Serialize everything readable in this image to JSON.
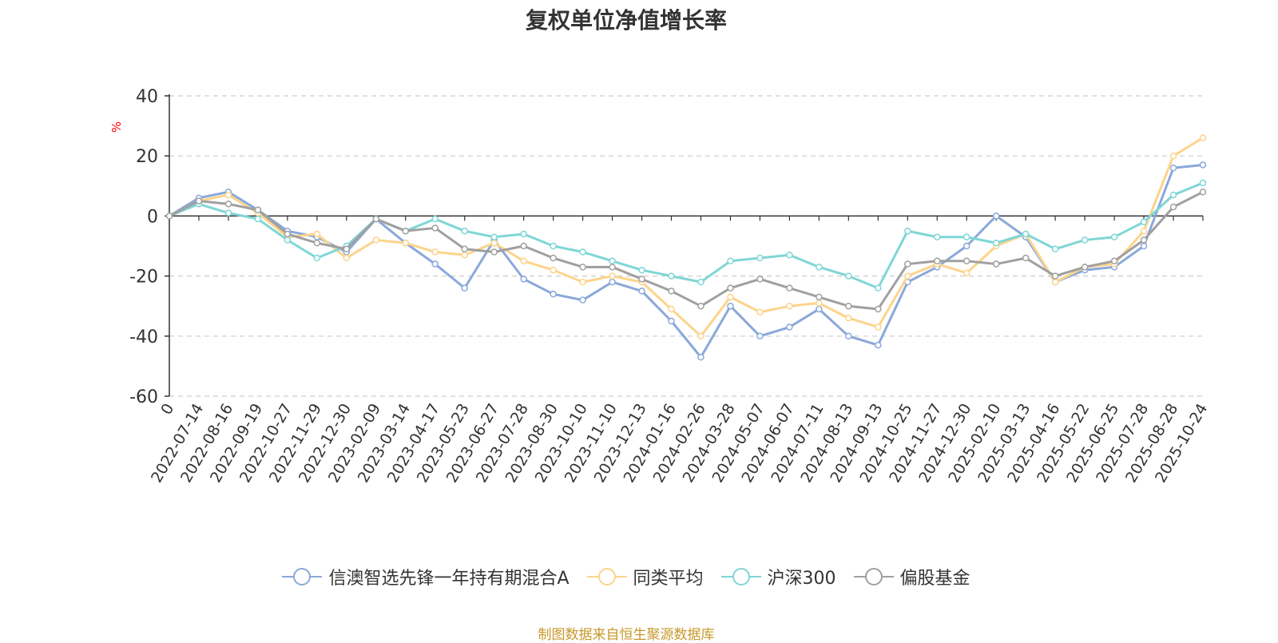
{
  "title": "复权单位净值增长率",
  "unit": "%",
  "source": "制图数据来自恒生聚源数据库",
  "chart_data": {
    "type": "line",
    "ylim": [
      -60,
      40
    ],
    "yticks": [
      -60,
      -40,
      -20,
      0,
      20,
      40
    ],
    "grid": true,
    "legend_position": "bottom",
    "x_labels": [
      "0",
      "2022-07-14",
      "2022-08-16",
      "2022-09-19",
      "2022-10-27",
      "2022-11-29",
      "2022-12-30",
      "2023-02-09",
      "2023-03-14",
      "2023-04-17",
      "2023-05-23",
      "2023-06-27",
      "2023-07-28",
      "2023-08-30",
      "2023-10-10",
      "2023-11-10",
      "2023-12-13",
      "2024-01-16",
      "2024-02-26",
      "2024-03-28",
      "2024-05-07",
      "2024-06-07",
      "2024-07-11",
      "2024-08-13",
      "2024-09-13",
      "2024-10-25",
      "2024-11-27",
      "2024-12-30",
      "2025-02-10",
      "2025-03-13",
      "2025-04-16",
      "2025-05-22",
      "2025-06-25",
      "2025-07-28",
      "2025-08-28",
      "2025-10-24"
    ],
    "series": [
      {
        "name": "信澳智选先锋一年持有期混合A",
        "color": "#8aa8da",
        "values": [
          0,
          6,
          8,
          2,
          -5,
          -7,
          -12,
          -1,
          -9,
          -16,
          -24,
          -8,
          -21,
          -26,
          -28,
          -22,
          -25,
          -35,
          -47,
          -30,
          -40,
          -37,
          -31,
          -40,
          -43,
          -22,
          -17,
          -10,
          0,
          -7,
          -22,
          -18,
          -17,
          -10,
          16,
          17
        ]
      },
      {
        "name": "同类平均",
        "color": "#fcd48c",
        "values": [
          0,
          5,
          7,
          1,
          -7,
          -6,
          -14,
          -8,
          -9,
          -12,
          -13,
          -9,
          -15,
          -18,
          -22,
          -20,
          -22,
          -31,
          -40,
          -27,
          -32,
          -30,
          -29,
          -34,
          -37,
          -20,
          -16,
          -19,
          -10,
          -6,
          -22,
          -17,
          -16,
          -5,
          20,
          26
        ]
      },
      {
        "name": "沪深300",
        "color": "#7fd6d6",
        "values": [
          0,
          4,
          1,
          -1,
          -8,
          -14,
          -10,
          -1,
          -5,
          -1,
          -5,
          -7,
          -6,
          -10,
          -12,
          -15,
          -18,
          -20,
          -22,
          -15,
          -14,
          -13,
          -17,
          -20,
          -24,
          -5,
          -7,
          -7,
          -9,
          -6,
          -11,
          -8,
          -7,
          -2,
          7,
          11
        ]
      },
      {
        "name": "偏股基金",
        "color": "#a0a0a0",
        "values": [
          0,
          5,
          4,
          2,
          -6,
          -9,
          -11,
          -1,
          -5,
          -4,
          -11,
          -12,
          -10,
          -14,
          -17,
          -17,
          -21,
          -25,
          -30,
          -24,
          -21,
          -24,
          -27,
          -30,
          -31,
          -16,
          -15,
          -15,
          -16,
          -14,
          -20,
          -17,
          -15,
          -8,
          3,
          8
        ]
      }
    ]
  }
}
